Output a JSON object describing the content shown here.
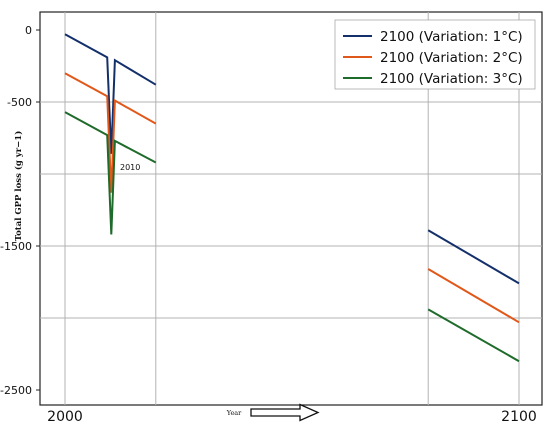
{
  "chart_data": {
    "type": "line",
    "title": "",
    "xlabel": "Year",
    "ylabel": "Total GPP loss  (g yr−1)",
    "xlim": [
      2000,
      2100
    ],
    "ylim": [
      -2500,
      0
    ],
    "x_ticks": [
      "2000",
      "2100"
    ],
    "y_ticks": [
      "0",
      "-500",
      "-1500",
      "-2500"
    ],
    "grid": true,
    "legend_position": "top-right",
    "annotation": "2010",
    "arrow_direction": "right",
    "series": [
      {
        "name": "2100 (Variation: 1°C)",
        "color": "#14306b",
        "segments": [
          [
            [
              2000,
              -30
            ],
            [
              2009.3,
              -190
            ],
            [
              2010.2,
              -860
            ],
            [
              2011.0,
              -210
            ],
            [
              2020,
              -380
            ]
          ],
          [
            [
              2080,
              -1390
            ],
            [
              2100,
              -1760
            ]
          ]
        ]
      },
      {
        "name": "2100 (Variation: 2°C)",
        "color": "#e0581a",
        "segments": [
          [
            [
              2000,
              -300
            ],
            [
              2009.3,
              -460
            ],
            [
              2010.2,
              -1130
            ],
            [
              2011.0,
              -490
            ],
            [
              2020,
              -650
            ]
          ],
          [
            [
              2080,
              -1660
            ],
            [
              2100,
              -2030
            ]
          ]
        ]
      },
      {
        "name": "2100 (Variation: 3°C)",
        "color": "#1f6b2b",
        "segments": [
          [
            [
              2000,
              -570
            ],
            [
              2009.3,
              -730
            ],
            [
              2010.2,
              -1420
            ],
            [
              2011.0,
              -770
            ],
            [
              2020,
              -920
            ]
          ],
          [
            [
              2080,
              -1940
            ],
            [
              2100,
              -2300
            ]
          ]
        ]
      }
    ]
  }
}
